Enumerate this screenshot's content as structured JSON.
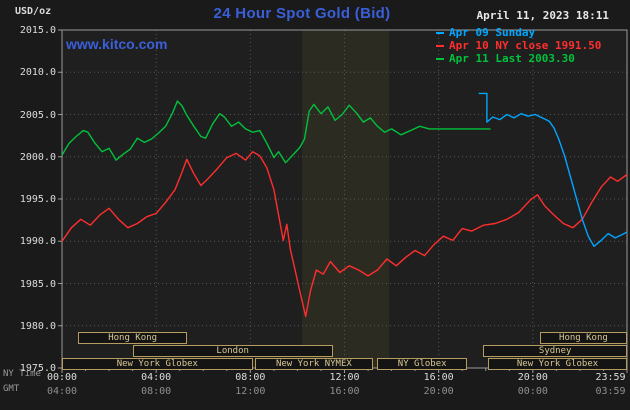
{
  "header": {
    "units": "USD/oz",
    "title": "24 Hour Spot Gold (Bid)",
    "datetime": "April 11, 2023 18:11",
    "watermark": "www.kitco.com"
  },
  "legend": [
    {
      "label": "Apr 09 Sunday",
      "color": "#00a6ff"
    },
    {
      "label": "Apr 10 NY close 1991.50",
      "color": "#ff2e2e"
    },
    {
      "label": "Apr 11 Last 2003.30",
      "color": "#00c23c"
    }
  ],
  "colors": {
    "page_bg": "#1a1a1a",
    "plot_bg": "#1f1f1f",
    "grid": "#565656",
    "axis": "#9a9a9a",
    "brand_blue": "#3a5fd9",
    "session_border": "#b49d5e",
    "session_text": "#d8c894"
  },
  "axes": {
    "x_min": 0,
    "x_max": 24,
    "y_min": 1975,
    "y_max": 2015,
    "row1_caption": "NY Time",
    "row2_caption": "GMT",
    "y_ticks": [
      {
        "v": 2015,
        "label": "2015.0"
      },
      {
        "v": 2010,
        "label": "2010.0"
      },
      {
        "v": 2005,
        "label": "2005.0"
      },
      {
        "v": 2000,
        "label": "2000.0"
      },
      {
        "v": 1995,
        "label": "1995.0"
      },
      {
        "v": 1990,
        "label": "1990.0"
      },
      {
        "v": 1985,
        "label": "1985.0"
      },
      {
        "v": 1980,
        "label": "1980.0"
      },
      {
        "v": 1975,
        "label": "1975.0"
      }
    ],
    "x_ticks": [
      {
        "h": 0,
        "ny": "00:00",
        "gmt": "04:00"
      },
      {
        "h": 4,
        "ny": "04:00",
        "gmt": "08:00"
      },
      {
        "h": 8,
        "ny": "08:00",
        "gmt": "12:00"
      },
      {
        "h": 12,
        "ny": "12:00",
        "gmt": "16:00"
      },
      {
        "h": 16,
        "ny": "16:00",
        "gmt": "20:00"
      },
      {
        "h": 20,
        "ny": "20:00",
        "gmt": "00:00"
      },
      {
        "h": 23.3,
        "ny": "23:59",
        "gmt": "03:59"
      }
    ],
    "x_gridlines": [
      4,
      8,
      12,
      16,
      20
    ],
    "y_gridlines": [
      1980,
      1985,
      1990,
      1995,
      2000,
      2005,
      2010
    ]
  },
  "sessions": [
    {
      "row": 1,
      "label": "Hong Kong",
      "from": 0.7,
      "to": 5.3
    },
    {
      "row": 1,
      "label": "Hong Kong",
      "from": 20.3,
      "to": 24
    },
    {
      "row": 2,
      "label": "London",
      "from": 3.0,
      "to": 11.5
    },
    {
      "row": 2,
      "label": "Sydney",
      "from": 17.9,
      "to": 24
    },
    {
      "row": 3,
      "label": "New York Globex",
      "from": 0,
      "to": 8.1
    },
    {
      "row": 3,
      "label": "New York NYMEX",
      "from": 8.2,
      "to": 13.2
    },
    {
      "row": 3,
      "label": "NY Globex",
      "from": 13.4,
      "to": 17.2
    },
    {
      "row": 3,
      "label": "New York Globex",
      "from": 18.1,
      "to": 24
    }
  ],
  "chart_data": {
    "type": "line",
    "title": "24 Hour Spot Gold (Bid)",
    "xlabel": "NY Time (hours)",
    "ylabel": "USD/oz",
    "x_range": [
      0,
      24
    ],
    "y_range": [
      1975,
      2015
    ],
    "grid": true,
    "legend_position": "top-right",
    "last_price": 2003.3,
    "prev_ny_close": 1991.5,
    "shaded_bands": [
      {
        "from": 10.2,
        "to": 13.9,
        "color": "#2b2b22"
      }
    ],
    "series": [
      {
        "id": "apr10",
        "name": "Apr 10 NY close 1991.50",
        "color": "#ff2e2e",
        "points": [
          [
            0,
            1990.0
          ],
          [
            0.4,
            1991.6
          ],
          [
            0.8,
            1992.6
          ],
          [
            1.2,
            1991.9
          ],
          [
            1.6,
            1993.1
          ],
          [
            2.0,
            1993.9
          ],
          [
            2.4,
            1992.6
          ],
          [
            2.8,
            1991.6
          ],
          [
            3.2,
            1992.1
          ],
          [
            3.6,
            1992.9
          ],
          [
            4.0,
            1993.3
          ],
          [
            4.4,
            1994.6
          ],
          [
            4.8,
            1996.1
          ],
          [
            5.1,
            1998.2
          ],
          [
            5.3,
            1999.7
          ],
          [
            5.6,
            1998.0
          ],
          [
            5.9,
            1996.6
          ],
          [
            6.2,
            1997.4
          ],
          [
            6.6,
            1998.6
          ],
          [
            7.0,
            1999.9
          ],
          [
            7.4,
            2000.4
          ],
          [
            7.8,
            1999.6
          ],
          [
            8.1,
            2000.6
          ],
          [
            8.4,
            2000.1
          ],
          [
            8.7,
            1998.7
          ],
          [
            9.0,
            1996.1
          ],
          [
            9.2,
            1993.1
          ],
          [
            9.4,
            1990.1
          ],
          [
            9.55,
            1992.0
          ],
          [
            9.7,
            1989.0
          ],
          [
            9.9,
            1986.6
          ],
          [
            10.1,
            1984.1
          ],
          [
            10.35,
            1981.1
          ],
          [
            10.55,
            1984.1
          ],
          [
            10.8,
            1986.6
          ],
          [
            11.1,
            1986.1
          ],
          [
            11.4,
            1987.6
          ],
          [
            11.8,
            1986.3
          ],
          [
            12.2,
            1987.1
          ],
          [
            12.6,
            1986.6
          ],
          [
            13.0,
            1985.9
          ],
          [
            13.4,
            1986.6
          ],
          [
            13.8,
            1987.9
          ],
          [
            14.2,
            1987.1
          ],
          [
            14.6,
            1988.1
          ],
          [
            15.0,
            1988.9
          ],
          [
            15.4,
            1988.3
          ],
          [
            15.8,
            1989.6
          ],
          [
            16.2,
            1990.6
          ],
          [
            16.6,
            1990.1
          ],
          [
            17.0,
            1991.5
          ],
          [
            17.4,
            1991.2
          ],
          [
            17.9,
            1991.9
          ],
          [
            18.4,
            1992.1
          ],
          [
            18.9,
            1992.6
          ],
          [
            19.4,
            1993.4
          ],
          [
            19.9,
            1994.9
          ],
          [
            20.2,
            1995.5
          ],
          [
            20.5,
            1994.2
          ],
          [
            20.9,
            1993.1
          ],
          [
            21.3,
            1992.1
          ],
          [
            21.7,
            1991.6
          ],
          [
            22.1,
            1992.6
          ],
          [
            22.5,
            1994.6
          ],
          [
            22.9,
            1996.4
          ],
          [
            23.3,
            1997.6
          ],
          [
            23.6,
            1997.1
          ],
          [
            24,
            1997.9
          ]
        ]
      },
      {
        "id": "apr09",
        "name": "Apr 09 Sunday",
        "color": "#00a6ff",
        "points": [
          [
            17.7,
            2007.5
          ],
          [
            18.05,
            2007.5
          ],
          [
            18.05,
            2004.1
          ],
          [
            18.3,
            2004.7
          ],
          [
            18.6,
            2004.4
          ],
          [
            18.9,
            2005.0
          ],
          [
            19.2,
            2004.6
          ],
          [
            19.5,
            2005.1
          ],
          [
            19.8,
            2004.8
          ],
          [
            20.1,
            2005.0
          ],
          [
            20.4,
            2004.6
          ],
          [
            20.7,
            2004.2
          ],
          [
            20.9,
            2003.4
          ],
          [
            21.1,
            2002.1
          ],
          [
            21.35,
            2000.1
          ],
          [
            21.6,
            1997.6
          ],
          [
            21.85,
            1995.1
          ],
          [
            22.1,
            1992.6
          ],
          [
            22.35,
            1990.6
          ],
          [
            22.6,
            1989.4
          ],
          [
            22.9,
            1990.1
          ],
          [
            23.2,
            1990.9
          ],
          [
            23.5,
            1990.4
          ],
          [
            23.8,
            1990.8
          ],
          [
            24,
            1991.1
          ]
        ]
      },
      {
        "id": "apr11",
        "name": "Apr 11 Last 2003.30",
        "color": "#00c23c",
        "points": [
          [
            0,
            2000.2
          ],
          [
            0.3,
            2001.6
          ],
          [
            0.6,
            2002.4
          ],
          [
            0.9,
            2003.1
          ],
          [
            1.1,
            2002.9
          ],
          [
            1.4,
            2001.6
          ],
          [
            1.7,
            2000.6
          ],
          [
            2.0,
            2001.0
          ],
          [
            2.3,
            1999.6
          ],
          [
            2.6,
            2000.3
          ],
          [
            2.9,
            2000.9
          ],
          [
            3.2,
            2002.2
          ],
          [
            3.5,
            2001.7
          ],
          [
            3.8,
            2002.1
          ],
          [
            4.1,
            2002.8
          ],
          [
            4.4,
            2003.6
          ],
          [
            4.7,
            2005.2
          ],
          [
            4.9,
            2006.6
          ],
          [
            5.1,
            2006.0
          ],
          [
            5.3,
            2004.9
          ],
          [
            5.6,
            2003.6
          ],
          [
            5.9,
            2002.4
          ],
          [
            6.1,
            2002.2
          ],
          [
            6.4,
            2003.9
          ],
          [
            6.7,
            2005.1
          ],
          [
            6.9,
            2004.7
          ],
          [
            7.2,
            2003.6
          ],
          [
            7.5,
            2004.1
          ],
          [
            7.8,
            2003.3
          ],
          [
            8.1,
            2002.9
          ],
          [
            8.4,
            2003.1
          ],
          [
            8.7,
            2001.6
          ],
          [
            9.0,
            1999.9
          ],
          [
            9.2,
            2000.6
          ],
          [
            9.5,
            1999.3
          ],
          [
            9.8,
            2000.2
          ],
          [
            10.1,
            2001.1
          ],
          [
            10.3,
            2002.1
          ],
          [
            10.5,
            2005.4
          ],
          [
            10.7,
            2006.2
          ],
          [
            11.0,
            2005.1
          ],
          [
            11.3,
            2005.9
          ],
          [
            11.6,
            2004.3
          ],
          [
            11.9,
            2005.0
          ],
          [
            12.2,
            2006.1
          ],
          [
            12.5,
            2005.2
          ],
          [
            12.8,
            2004.1
          ],
          [
            13.1,
            2004.6
          ],
          [
            13.4,
            2003.6
          ],
          [
            13.7,
            2002.9
          ],
          [
            14.0,
            2003.3
          ],
          [
            14.4,
            2002.6
          ],
          [
            14.8,
            2003.1
          ],
          [
            15.2,
            2003.6
          ],
          [
            15.6,
            2003.3
          ],
          [
            16.2,
            2003.3
          ],
          [
            17.0,
            2003.3
          ],
          [
            18.2,
            2003.3
          ]
        ]
      }
    ]
  }
}
